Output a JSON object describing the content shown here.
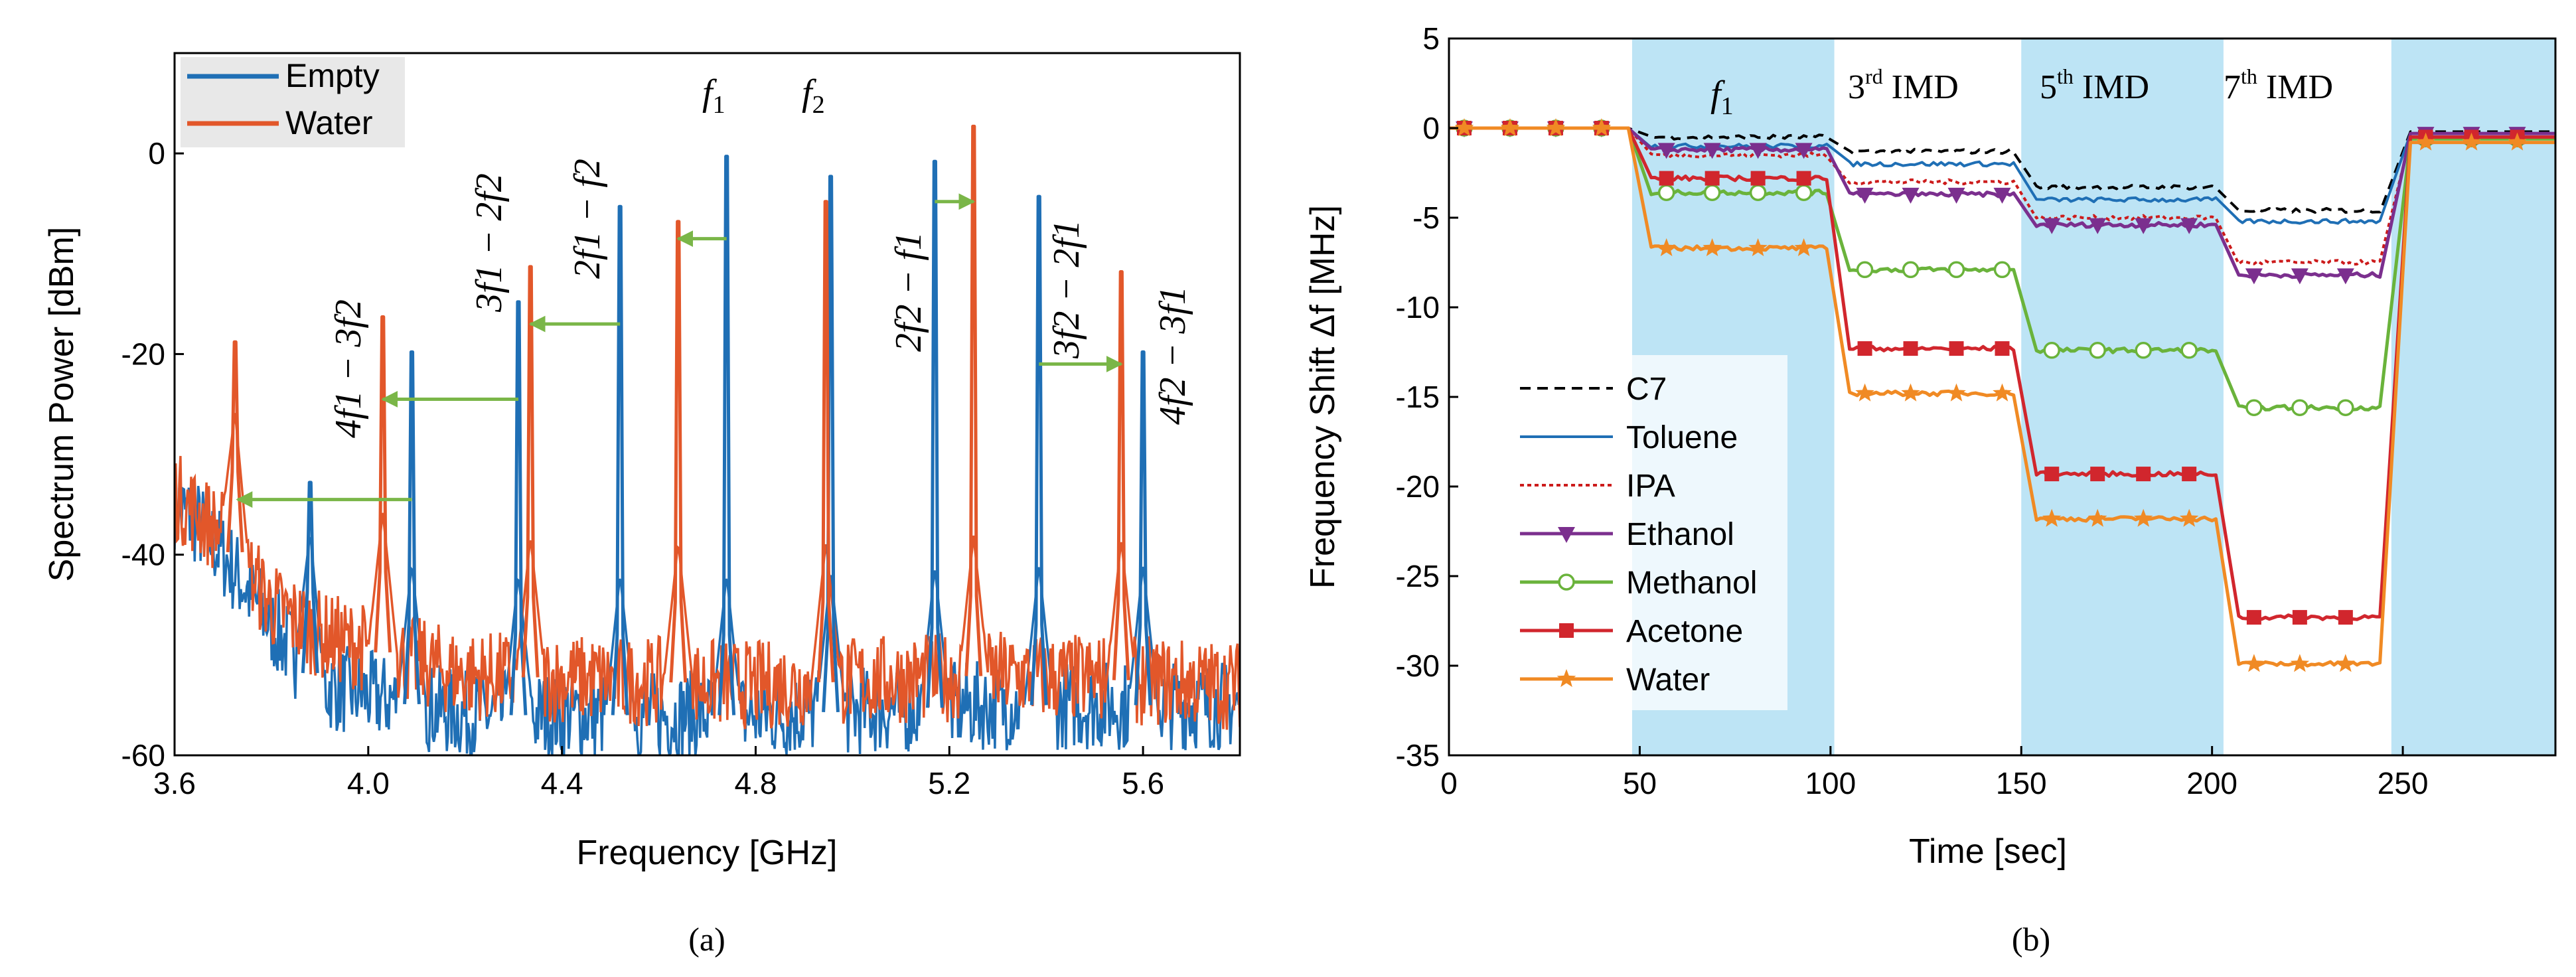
{
  "chart_data": [
    {
      "id": "a",
      "type": "line",
      "panel_label": "(a)",
      "xlabel": "Frequency [GHz]",
      "ylabel": "Spectrum Power [dBm]",
      "xlim": [
        3.6,
        5.8
      ],
      "ylim": [
        -60,
        10
      ],
      "xticks": [
        3.6,
        4.0,
        4.4,
        4.8,
        5.2,
        5.6
      ],
      "xtick_labels": [
        "3.6",
        "4.0",
        "4.4",
        "4.8",
        "5.2",
        "5.6"
      ],
      "yticks": [
        -60,
        -40,
        -20,
        0
      ],
      "ytick_labels": [
        "-60",
        "-40",
        "-20",
        "0"
      ],
      "noise_floor": [
        {
          "x": 3.6,
          "empty": -35,
          "water": -34
        },
        {
          "x": 3.65,
          "empty": -37,
          "water": -36
        },
        {
          "x": 3.7,
          "empty": -40,
          "water": -38
        },
        {
          "x": 3.8,
          "empty": -47,
          "water": -45
        },
        {
          "x": 3.9,
          "empty": -53,
          "water": -48
        },
        {
          "x": 4.2,
          "empty": -56,
          "water": -52
        },
        {
          "x": 4.8,
          "empty": -56,
          "water": -53
        },
        {
          "x": 5.3,
          "empty": -55,
          "water": -52
        },
        {
          "x": 5.8,
          "empty": -55,
          "water": -53
        }
      ],
      "series": [
        {
          "name": "Empty",
          "color": "#1f6fb5",
          "peaks": [
            {
              "x": 3.88,
              "y": -32.5
            },
            {
              "x": 4.09,
              "y": -19.5
            },
            {
              "x": 4.31,
              "y": -14.5
            },
            {
              "x": 4.52,
              "y": -5.0
            },
            {
              "x": 4.74,
              "y": 0.0
            },
            {
              "x": 4.955,
              "y": -2.0
            },
            {
              "x": 5.17,
              "y": -0.5
            },
            {
              "x": 5.385,
              "y": -4.0
            },
            {
              "x": 5.6,
              "y": -19.5
            }
          ]
        },
        {
          "name": "Water",
          "color": "#e2572a",
          "peaks": [
            {
              "x": 3.725,
              "y": -18.5
            },
            {
              "x": 4.03,
              "y": -16.0
            },
            {
              "x": 4.335,
              "y": -11.0
            },
            {
              "x": 4.64,
              "y": -6.5
            },
            {
              "x": 4.945,
              "y": -4.5
            },
            {
              "x": 5.25,
              "y": 3.0
            },
            {
              "x": 5.555,
              "y": -11.5
            }
          ]
        }
      ],
      "legend": {
        "position": "top-left",
        "entries": [
          "Empty",
          "Water"
        ]
      },
      "annotations": {
        "f1": "f",
        "f1_sub": "1",
        "f2": "f",
        "f2_sub": "2",
        "im_4f1_3f2": "4f1 − 3f2",
        "im_3f1_2f2": "3f1 − 2f2",
        "im_2f1_f2": "2f1 − f2",
        "im_2f2_f1": "2f2 − f1",
        "im_3f2_2f1": "3f2 − 2f1",
        "im_4f2_3f1": "4f2 − 3f1"
      },
      "shift_arrows": [
        {
          "from": 4.09,
          "to": 3.73,
          "y": -34.5
        },
        {
          "from": 4.31,
          "to": 4.03,
          "y": -24.5
        },
        {
          "from": 4.52,
          "to": 4.335,
          "y": -17.0
        },
        {
          "from": 4.74,
          "to": 4.64,
          "y": -8.5
        },
        {
          "from": 5.17,
          "to": 5.25,
          "y": -4.8
        },
        {
          "from": 5.385,
          "to": 5.555,
          "y": -21.0
        }
      ],
      "arrow_color": "#7ab648"
    },
    {
      "id": "b",
      "type": "line",
      "panel_label": "(b)",
      "xlabel": "Time [sec]",
      "ylabel": "Frequency Shift Δf [MHz]",
      "xlim": [
        0,
        290
      ],
      "ylim": [
        -35,
        5
      ],
      "xticks": [
        0,
        50,
        100,
        150,
        200,
        250
      ],
      "xtick_labels": [
        "0",
        "50",
        "100",
        "150",
        "200",
        "250"
      ],
      "yticks": [
        -35,
        -30,
        -25,
        -20,
        -15,
        -10,
        -5,
        0,
        5
      ],
      "ytick_labels": [
        "-35",
        "-30",
        "-25",
        "-20",
        "-15",
        "-10",
        "-5",
        "0",
        "5"
      ],
      "shaded_regions": [
        [
          48,
          101
        ],
        [
          150,
          203
        ],
        [
          247,
          290
        ]
      ],
      "region_color": "#bde4f5",
      "region_labels": {
        "f1": "f",
        "f1_sub": "1",
        "imd3": "3",
        "imd3_sup": "rd",
        "imd3_txt": " IMD",
        "imd5": "5",
        "imd5_sup": "th",
        "imd5_txt": " IMD",
        "imd7": "7",
        "imd7_sup": "th",
        "imd7_txt": " IMD"
      },
      "segment_times": [
        [
          0,
          47
        ],
        [
          53,
          99
        ],
        [
          105,
          148
        ],
        [
          154,
          201
        ],
        [
          207,
          244
        ],
        [
          252,
          290
        ]
      ],
      "series": [
        {
          "name": "C7",
          "color": "#000000",
          "dash": "16,10",
          "marker": "none",
          "levels": [
            0.0,
            -0.5,
            -1.3,
            -3.3,
            -4.6,
            -0.2
          ]
        },
        {
          "name": "Toluene",
          "color": "#1f6fb5",
          "dash": "",
          "marker": "none",
          "levels": [
            0.0,
            -1.0,
            -2.0,
            -4.0,
            -5.2,
            -0.3
          ]
        },
        {
          "name": "IPA",
          "color": "#cc1b1b",
          "dash": "6,5",
          "marker": "none",
          "levels": [
            0.0,
            -1.5,
            -3.0,
            -5.0,
            -7.5,
            -0.5
          ]
        },
        {
          "name": "Ethanol",
          "color": "#7b2f8e",
          "dash": "",
          "marker": "triangle",
          "levels": [
            0.0,
            -1.2,
            -3.7,
            -5.4,
            -8.2,
            -0.3
          ]
        },
        {
          "name": "Methanol",
          "color": "#6ab33b",
          "dash": "",
          "marker": "circle",
          "levels": [
            0.0,
            -3.6,
            -7.9,
            -12.4,
            -15.6,
            -0.6
          ]
        },
        {
          "name": "Acetone",
          "color": "#d1262d",
          "dash": "",
          "marker": "square",
          "levels": [
            0.0,
            -2.8,
            -12.3,
            -19.3,
            -27.3,
            -0.5
          ]
        },
        {
          "name": "Water",
          "color": "#f08a24",
          "dash": "",
          "marker": "star",
          "levels": [
            0.0,
            -6.7,
            -14.8,
            -21.8,
            -29.9,
            -0.8
          ]
        }
      ],
      "legend": {
        "position": "bottom-left",
        "entries": [
          "C7",
          "Toluene",
          "IPA",
          "Ethanol",
          "Methanol",
          "Acetone",
          "Water"
        ]
      }
    }
  ]
}
